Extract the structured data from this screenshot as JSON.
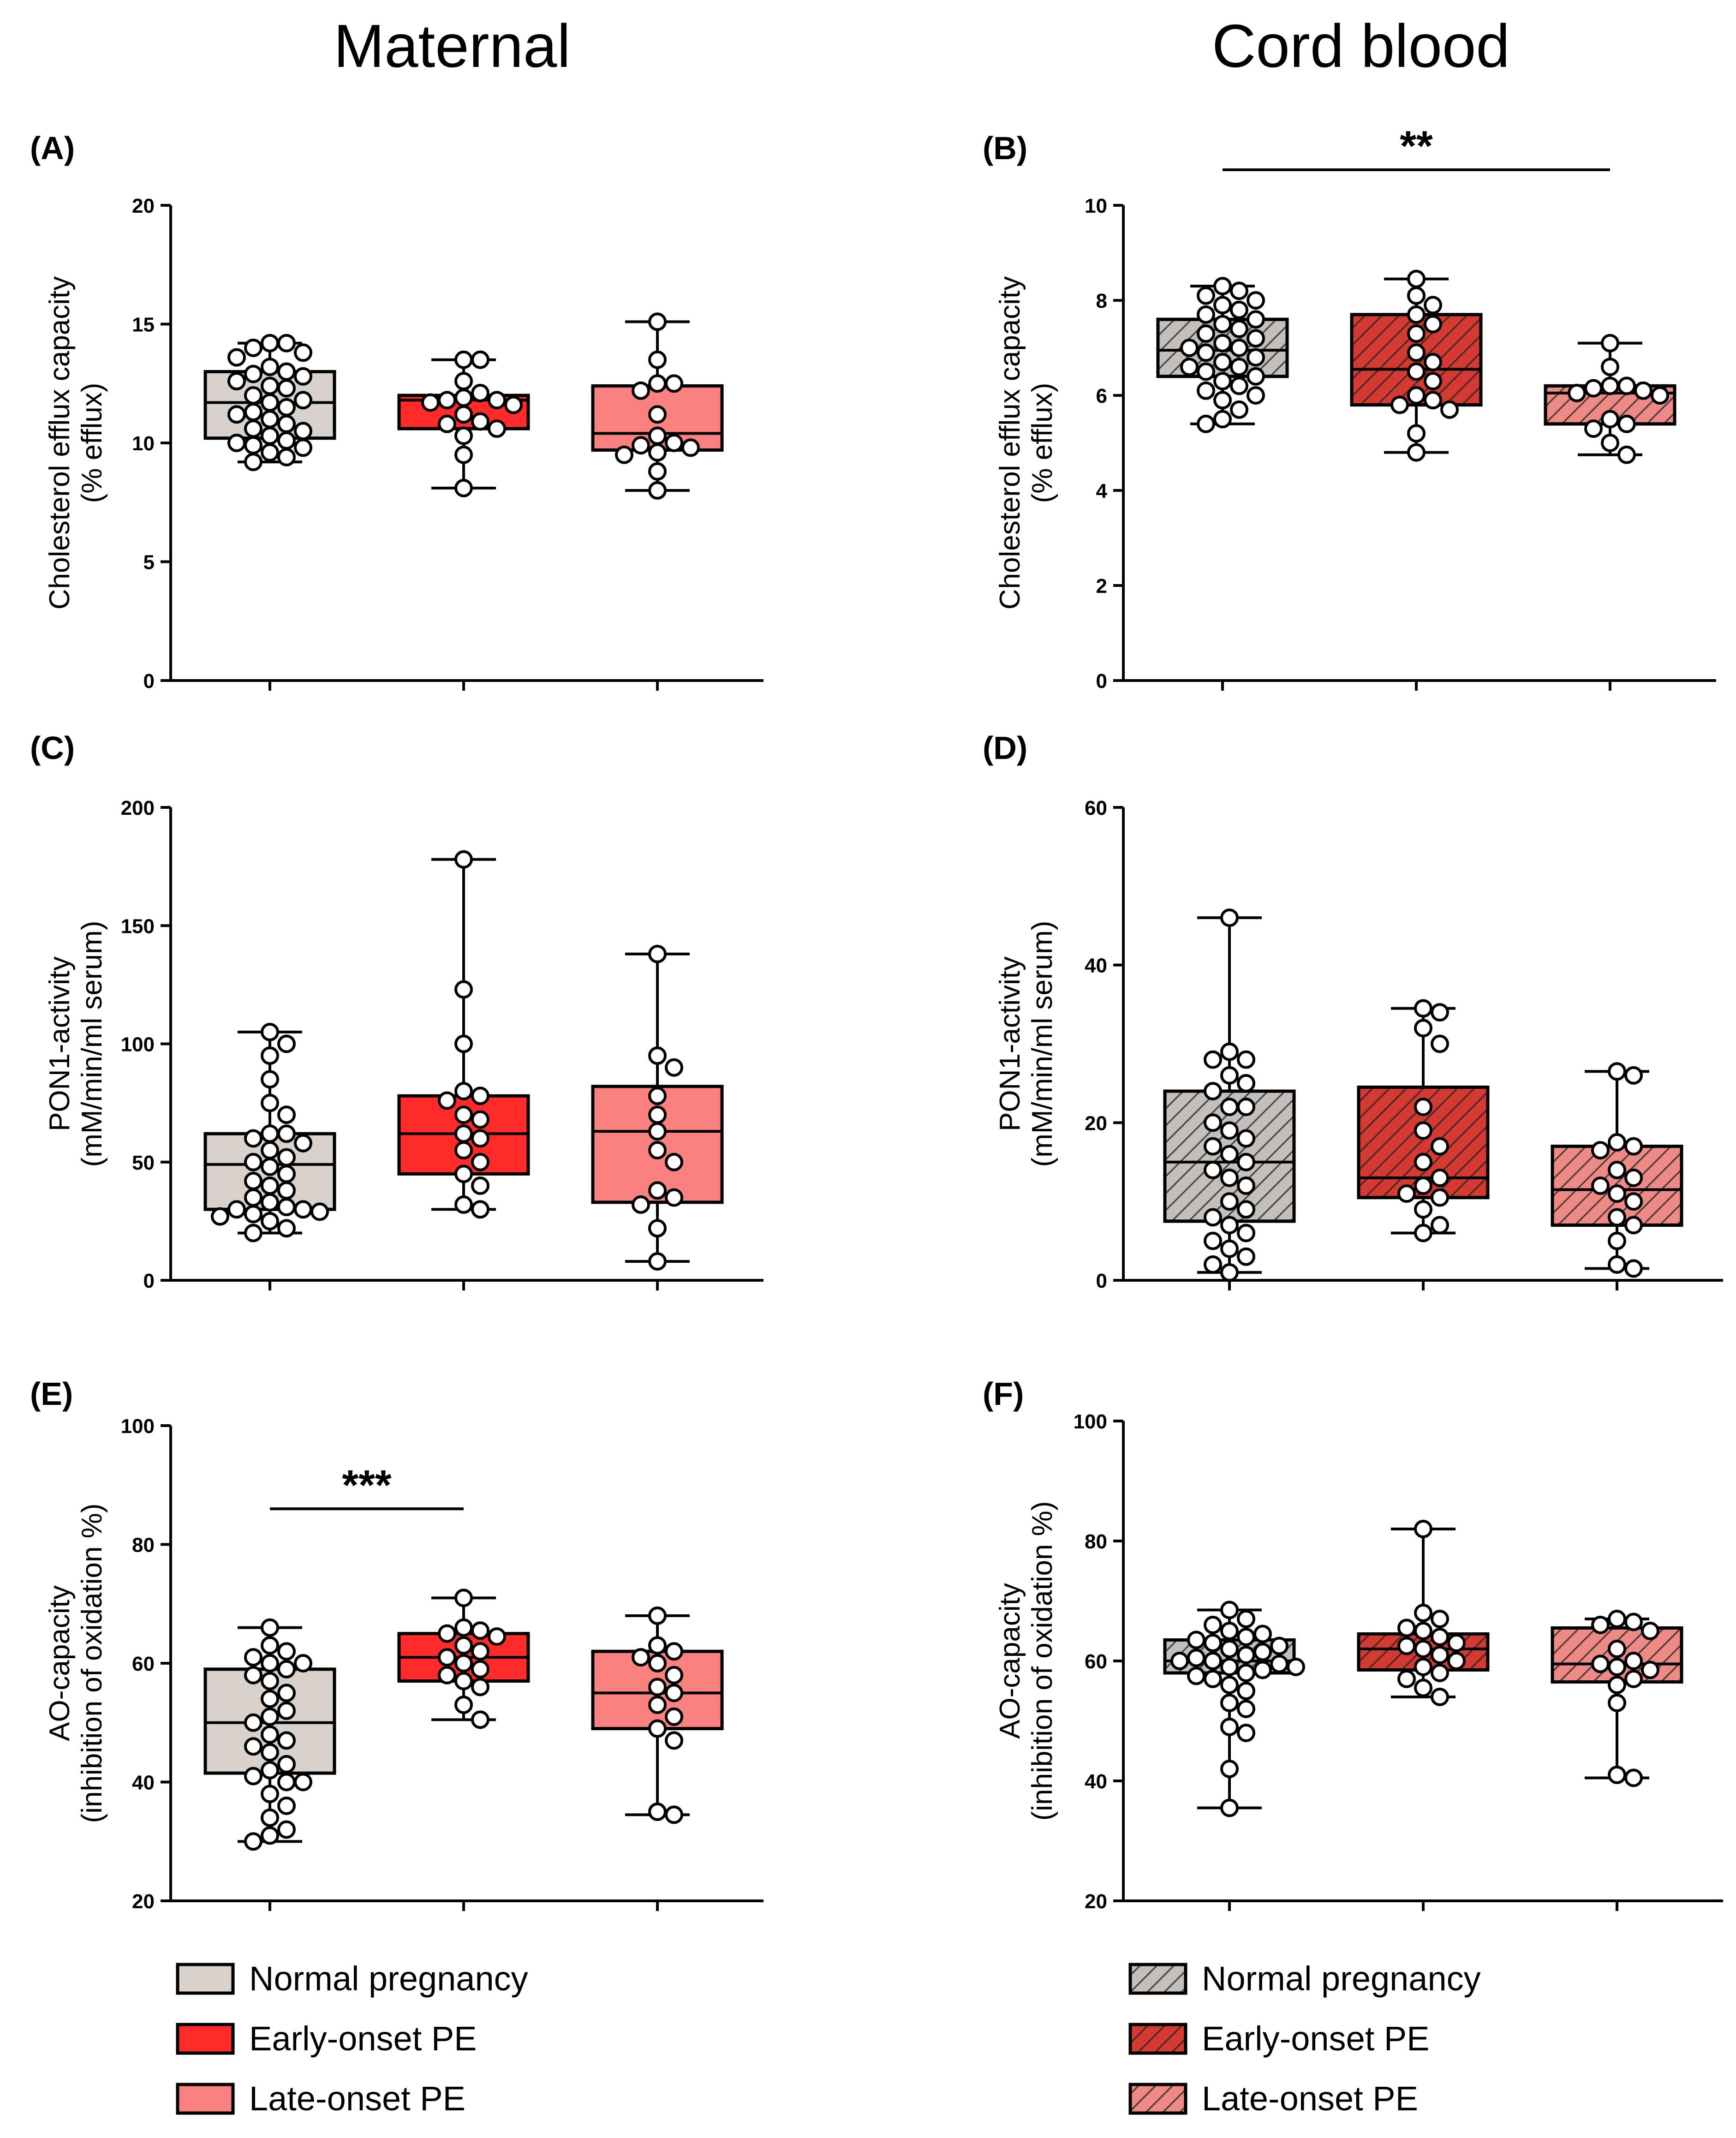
{
  "titles": {
    "maternal": "Maternal",
    "cord": "Cord blood"
  },
  "colors": {
    "normal": "#d9d2cc",
    "early": "#ff2a2a",
    "late": "#fb8080",
    "cord_normal": "#c4bfbb",
    "cord_early": "#d43a32",
    "cord_late": "#ee8a85",
    "hatch": "#222222"
  },
  "legend": {
    "maternal": [
      {
        "label": "Normal pregnancy",
        "color_key": "normal",
        "hatched": false
      },
      {
        "label": "Early-onset PE",
        "color_key": "early",
        "hatched": false
      },
      {
        "label": "Late-onset PE",
        "color_key": "late",
        "hatched": false
      }
    ],
    "cord": [
      {
        "label": "Normal pregnancy",
        "color_key": "cord_normal",
        "hatched": true
      },
      {
        "label": "Early-onset PE",
        "color_key": "cord_early",
        "hatched": true
      },
      {
        "label": "Late-onset PE",
        "color_key": "cord_late",
        "hatched": true
      }
    ]
  },
  "chart_data": [
    {
      "type": "box",
      "panel": "(A)",
      "ylabel": [
        "Cholesterol efflux capacity",
        "(% efflux)"
      ],
      "ylim": [
        0,
        20
      ],
      "yticks": [
        "0",
        "5",
        "10",
        "15",
        "20"
      ],
      "hatched": false,
      "significance": null,
      "groups": [
        {
          "name": "Normal pregnancy",
          "color_key": "normal",
          "min": 9.2,
          "q1": 10.2,
          "median": 11.7,
          "q3": 13.0,
          "max": 14.2,
          "points": [
            14.2,
            14.2,
            14.0,
            13.8,
            13.6,
            13.2,
            13.0,
            12.9,
            12.8,
            12.6,
            12.4,
            12.3,
            12.0,
            11.8,
            11.7,
            11.5,
            11.3,
            11.2,
            11.0,
            10.8,
            10.6,
            10.5,
            10.3,
            10.1,
            10.0,
            9.9,
            9.8,
            9.6,
            9.4,
            9.2
          ]
        },
        {
          "name": "Early-onset PE",
          "color_key": "early",
          "min": 8.1,
          "q1": 10.6,
          "median": 11.8,
          "q3": 12.0,
          "max": 13.5,
          "points": [
            13.5,
            13.5,
            12.6,
            12.1,
            11.9,
            11.8,
            11.8,
            11.7,
            11.6,
            11.2,
            10.9,
            10.8,
            10.6,
            10.3,
            9.5,
            8.1
          ]
        },
        {
          "name": "Late-onset PE",
          "color_key": "late",
          "min": 8.0,
          "q1": 9.7,
          "median": 10.4,
          "q3": 12.4,
          "max": 15.1,
          "points": [
            15.1,
            13.5,
            12.5,
            12.5,
            12.2,
            11.2,
            10.3,
            10.0,
            9.9,
            9.8,
            9.6,
            9.5,
            8.8,
            8.0
          ]
        }
      ]
    },
    {
      "type": "box",
      "panel": "(B)",
      "ylabel": [
        "Cholesterol efflux capacity",
        "(% efflux)"
      ],
      "ylim": [
        0,
        10
      ],
      "yticks": [
        "0",
        "2",
        "4",
        "6",
        "8",
        "10"
      ],
      "hatched": true,
      "significance": {
        "label": "**",
        "from": 0,
        "to": 2
      },
      "groups": [
        {
          "name": "Normal pregnancy",
          "color_key": "cord_normal",
          "min": 5.4,
          "q1": 6.4,
          "median": 6.95,
          "q3": 7.6,
          "max": 8.3,
          "points": [
            8.3,
            8.2,
            8.1,
            8.0,
            7.9,
            7.8,
            7.7,
            7.6,
            7.5,
            7.4,
            7.3,
            7.2,
            7.1,
            7.0,
            7.0,
            6.9,
            6.8,
            6.7,
            6.6,
            6.6,
            6.5,
            6.4,
            6.3,
            6.2,
            6.1,
            6.0,
            5.9,
            5.7,
            5.5,
            5.4
          ]
        },
        {
          "name": "Early-onset PE",
          "color_key": "cord_early",
          "min": 4.8,
          "q1": 5.8,
          "median": 6.55,
          "q3": 7.7,
          "max": 8.45,
          "points": [
            8.45,
            8.1,
            7.9,
            7.7,
            7.5,
            7.3,
            6.9,
            6.7,
            6.5,
            6.3,
            6.0,
            5.9,
            5.8,
            5.7,
            5.2,
            4.8
          ]
        },
        {
          "name": "Late-onset PE",
          "color_key": "cord_late",
          "min": 4.75,
          "q1": 5.4,
          "median": 6.05,
          "q3": 6.2,
          "max": 7.1,
          "points": [
            7.1,
            6.6,
            6.2,
            6.2,
            6.15,
            6.1,
            6.05,
            6.0,
            5.5,
            5.4,
            5.3,
            5.0,
            4.75
          ]
        }
      ]
    },
    {
      "type": "box",
      "panel": "(C)",
      "ylabel": [
        "PON1-activity",
        "(mM/min/ml serum)"
      ],
      "ylim": [
        0,
        200
      ],
      "yticks": [
        "0",
        "50",
        "100",
        "150",
        "200"
      ],
      "hatched": false,
      "significance": null,
      "groups": [
        {
          "name": "Normal pregnancy",
          "color_key": "normal",
          "min": 20,
          "q1": 30,
          "median": 49,
          "q3": 62,
          "max": 105,
          "points": [
            105,
            100,
            95,
            85,
            75,
            70,
            62,
            62,
            60,
            58,
            55,
            52,
            50,
            48,
            45,
            42,
            40,
            38,
            35,
            33,
            31,
            30,
            30,
            29,
            28,
            27,
            25,
            22,
            20
          ]
        },
        {
          "name": "Early-onset PE",
          "color_key": "early",
          "min": 30,
          "q1": 45,
          "median": 62,
          "q3": 78,
          "max": 178,
          "points": [
            178,
            123,
            100,
            80,
            78,
            76,
            70,
            68,
            62,
            60,
            55,
            50,
            45,
            40,
            32,
            30
          ]
        },
        {
          "name": "Late-onset PE",
          "color_key": "late",
          "min": 8,
          "q1": 33,
          "median": 63,
          "q3": 82,
          "max": 138,
          "points": [
            138,
            95,
            90,
            78,
            70,
            63,
            55,
            50,
            38,
            35,
            32,
            22,
            8
          ]
        }
      ]
    },
    {
      "type": "box",
      "panel": "(D)",
      "ylabel": [
        "PON1-activity",
        "(mM/min/ml serum)"
      ],
      "ylim": [
        0,
        60
      ],
      "yticks": [
        "0",
        "20",
        "40",
        "60"
      ],
      "hatched": true,
      "significance": null,
      "groups": [
        {
          "name": "Normal pregnancy",
          "color_key": "cord_normal",
          "min": 1,
          "q1": 7.5,
          "median": 15,
          "q3": 24,
          "max": 46,
          "points": [
            46,
            29,
            28,
            28,
            26,
            25,
            24,
            22,
            22,
            20,
            19,
            18,
            17,
            16,
            15,
            14,
            13,
            12,
            10,
            9,
            8,
            7,
            6,
            5,
            4,
            3,
            2,
            1
          ]
        },
        {
          "name": "Early-onset PE",
          "color_key": "cord_early",
          "min": 6,
          "q1": 10.5,
          "median": 13,
          "q3": 24.5,
          "max": 34.5,
          "points": [
            34.5,
            34,
            32,
            30,
            22,
            19,
            17,
            15,
            13,
            12,
            11,
            10.5,
            9,
            7,
            6
          ]
        },
        {
          "name": "Late-onset PE",
          "color_key": "cord_late",
          "min": 1.5,
          "q1": 7,
          "median": 11.5,
          "q3": 17,
          "max": 26.5,
          "points": [
            26.5,
            26,
            17.5,
            17,
            16.5,
            14,
            13,
            12,
            11,
            10,
            8,
            7,
            5,
            2,
            1.5
          ]
        }
      ]
    },
    {
      "type": "box",
      "panel": "(E)",
      "ylabel": [
        "AO-capacity",
        "(inhibition of oxidation %)"
      ],
      "ylim": [
        20,
        100
      ],
      "yticks": [
        "20",
        "40",
        "60",
        "80",
        "100"
      ],
      "hatched": false,
      "significance": {
        "label": "***",
        "from": 0,
        "to": 1
      },
      "groups": [
        {
          "name": "Normal pregnancy",
          "color_key": "normal",
          "min": 30,
          "q1": 41.5,
          "median": 50,
          "q3": 59,
          "max": 66,
          "points": [
            66,
            63,
            62,
            61,
            60,
            60,
            59,
            58,
            57,
            55,
            54,
            52,
            51,
            50,
            48,
            47,
            46,
            45,
            43,
            42,
            41,
            40,
            40,
            38,
            36,
            34,
            32,
            31,
            30
          ]
        },
        {
          "name": "Early-onset PE",
          "color_key": "early",
          "min": 50.5,
          "q1": 57,
          "median": 61,
          "q3": 65,
          "max": 71,
          "points": [
            71,
            66,
            65.5,
            65,
            64.5,
            63,
            62,
            61,
            60,
            59,
            58,
            57,
            56,
            53,
            50.5
          ]
        },
        {
          "name": "Late-onset PE",
          "color_key": "late",
          "min": 34.5,
          "q1": 49,
          "median": 55,
          "q3": 62,
          "max": 68,
          "points": [
            68,
            63,
            62,
            61,
            60,
            58,
            56,
            55,
            53,
            51,
            49,
            47,
            35,
            34.5
          ]
        }
      ]
    },
    {
      "type": "box",
      "panel": "(F)",
      "ylabel": [
        "AO-capacity",
        "(inhibition of oxidation %)"
      ],
      "ylim": [
        20,
        100
      ],
      "yticks": [
        "20",
        "40",
        "60",
        "80",
        "100"
      ],
      "hatched": true,
      "significance": null,
      "groups": [
        {
          "name": "Normal pregnancy",
          "color_key": "cord_normal",
          "min": 35.5,
          "q1": 58,
          "median": 60,
          "q3": 63.5,
          "max": 68.5,
          "points": [
            68.5,
            67,
            66,
            65,
            64.5,
            64,
            63.5,
            63,
            62.5,
            62,
            61.5,
            61,
            60.5,
            60,
            60,
            59.5,
            59,
            59,
            58.5,
            58,
            57.5,
            57,
            56,
            55,
            53,
            52,
            49,
            48,
            42,
            35.5
          ]
        },
        {
          "name": "Early-onset PE",
          "color_key": "cord_early",
          "min": 54,
          "q1": 58.5,
          "median": 62,
          "q3": 64.5,
          "max": 82,
          "points": [
            82,
            68,
            67,
            65.5,
            65,
            64,
            63,
            62.5,
            62,
            61,
            60,
            59,
            58,
            57,
            55.5,
            54
          ]
        },
        {
          "name": "Late-onset PE",
          "color_key": "cord_late",
          "min": 40.5,
          "q1": 56.5,
          "median": 59.5,
          "q3": 65.5,
          "max": 67,
          "points": [
            67,
            66.5,
            66,
            65,
            62,
            60,
            59.5,
            59,
            58.5,
            57,
            56,
            53,
            41,
            40.5
          ]
        }
      ]
    }
  ]
}
